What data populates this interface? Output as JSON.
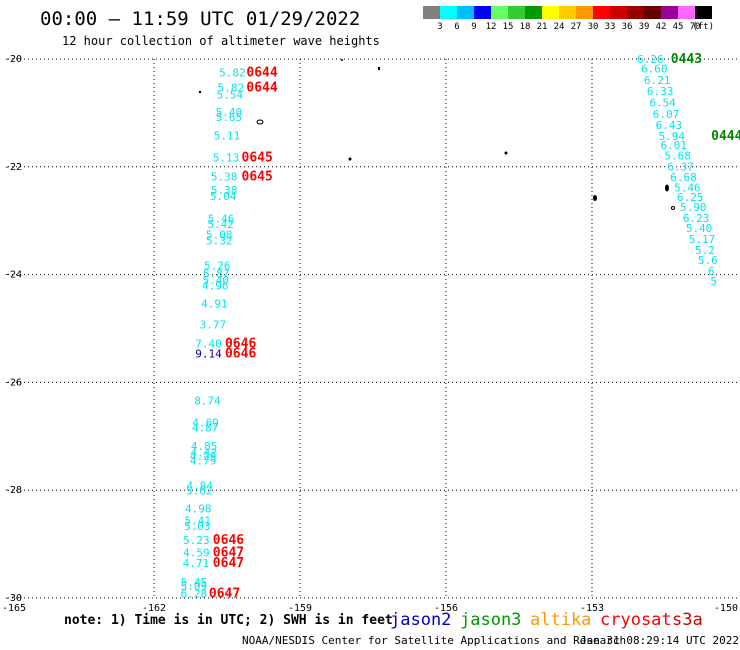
{
  "title": "00:00 – 11:59 UTC 01/29/2022",
  "subtitle": "12 hour collection of altimeter wave heights",
  "colorbar": {
    "labels": [
      "3",
      "6",
      "9",
      "12",
      "15",
      "18",
      "21",
      "24",
      "27",
      "30",
      "33",
      "36",
      "39",
      "42",
      "45",
      "70"
    ],
    "unit": "(ft)",
    "colors": [
      "#808080",
      "#00ffff",
      "#00bfff",
      "#0000ff",
      "#66ff66",
      "#33cc33",
      "#009900",
      "#ffff00",
      "#ffcc00",
      "#ff9900",
      "#ff0000",
      "#cc0000",
      "#990000",
      "#660000",
      "#990099",
      "#ff66ff",
      "#000000"
    ]
  },
  "note": "note:  1) Time is in UTC;  2) SWH is in feet",
  "satellites": [
    {
      "name": "jason2",
      "color": "#0000cc"
    },
    {
      "name": "jason3",
      "color": "#009900"
    },
    {
      "name": "altika",
      "color": "#ff9900"
    },
    {
      "name": "cryosat",
      "color": "#ff0000"
    },
    {
      "name": "s3a",
      "color": "#cc0000"
    }
  ],
  "credit": "NOAA/NESDIS Center for Satellite Applications and Research",
  "timestamp": "Jan 31 08:29:14 UTC 2022",
  "chart_data": {
    "type": "scatter",
    "xlim": [
      -165,
      -150
    ],
    "ylim": [
      -30,
      -20
    ],
    "x_ticks": [
      -165,
      -162,
      -159,
      -156,
      -153,
      -150
    ],
    "x_tick_labels": [
      "-165",
      "-162",
      "-159",
      "-156",
      "-153",
      "-150"
    ],
    "y_ticks": [
      -20,
      -22,
      -24,
      -26,
      -28,
      -30
    ],
    "y_tick_labels": [
      "-20",
      "-22",
      "-24",
      "-26",
      "-28",
      "-30"
    ],
    "grid": true,
    "series": [
      {
        "color": "#00e5ee",
        "points": [
          {
            "x": -160.39,
            "y": -20.25,
            "label": "5.82"
          },
          {
            "x": -160.42,
            "y": -20.53,
            "label": "5.82"
          },
          {
            "x": -160.44,
            "y": -20.66,
            "label": "5.54"
          },
          {
            "x": -160.46,
            "y": -20.98,
            "label": "5.40"
          },
          {
            "x": -160.46,
            "y": -21.08,
            "label": "5.65"
          },
          {
            "x": -160.5,
            "y": -21.42,
            "label": "5.11"
          },
          {
            "x": -160.52,
            "y": -21.83,
            "label": "5.13"
          },
          {
            "x": -160.56,
            "y": -22.18,
            "label": "5.38"
          },
          {
            "x": -160.56,
            "y": -22.43,
            "label": "5.38"
          },
          {
            "x": -160.58,
            "y": -22.54,
            "label": "5.04"
          },
          {
            "x": -160.62,
            "y": -22.96,
            "label": "5.46"
          },
          {
            "x": -160.63,
            "y": -23.06,
            "label": "5.42"
          },
          {
            "x": -160.66,
            "y": -23.26,
            "label": "5.08"
          },
          {
            "x": -160.66,
            "y": -23.37,
            "label": "5.32"
          },
          {
            "x": -160.7,
            "y": -23.83,
            "label": "5.26"
          },
          {
            "x": -160.72,
            "y": -23.98,
            "label": "5.87"
          },
          {
            "x": -160.73,
            "y": -24.1,
            "label": "5.40"
          },
          {
            "x": -160.74,
            "y": -24.2,
            "label": "4.96"
          },
          {
            "x": -160.76,
            "y": -24.54,
            "label": "4.91"
          },
          {
            "x": -160.79,
            "y": -24.93,
            "label": "3.77"
          },
          {
            "x": -160.88,
            "y": -25.28,
            "label": "7.40"
          },
          {
            "x": -160.9,
            "y": -26.34,
            "label": "8.74"
          },
          {
            "x": -160.94,
            "y": -26.74,
            "label": "4.69"
          },
          {
            "x": -160.95,
            "y": -26.84,
            "label": "4.87"
          },
          {
            "x": -160.97,
            "y": -27.18,
            "label": "4.85"
          },
          {
            "x": -160.98,
            "y": -27.3,
            "label": "4.42"
          },
          {
            "x": -160.99,
            "y": -27.37,
            "label": "4.29"
          },
          {
            "x": -160.99,
            "y": -27.45,
            "label": "4.79"
          },
          {
            "x": -161.06,
            "y": -27.91,
            "label": "4.84"
          },
          {
            "x": -161.07,
            "y": -28.01,
            "label": "5.62"
          },
          {
            "x": -161.09,
            "y": -28.34,
            "label": "4.98"
          },
          {
            "x": -161.1,
            "y": -28.56,
            "label": "5.41"
          },
          {
            "x": -161.11,
            "y": -28.66,
            "label": "5.03"
          },
          {
            "x": -161.13,
            "y": -28.92,
            "label": "5.23"
          },
          {
            "x": -161.13,
            "y": -29.16,
            "label": "4.59"
          },
          {
            "x": -161.14,
            "y": -29.35,
            "label": "4.71"
          },
          {
            "x": -161.18,
            "y": -29.7,
            "label": "5.45"
          },
          {
            "x": -161.18,
            "y": -29.78,
            "label": "5.09"
          },
          {
            "x": -161.18,
            "y": -29.92,
            "label": "6.28"
          }
        ]
      },
      {
        "color": "#0000aa",
        "points": [
          {
            "x": -160.88,
            "y": -25.46,
            "label": "9.14"
          }
        ]
      },
      {
        "color": "#00e5ee",
        "points": [
          {
            "x": -151.8,
            "y": -20.0,
            "label": "6.26"
          },
          {
            "x": -151.72,
            "y": -20.18,
            "label": "6.60"
          },
          {
            "x": -151.66,
            "y": -20.39,
            "label": "6.21"
          },
          {
            "x": -151.6,
            "y": -20.59,
            "label": "6.33"
          },
          {
            "x": -151.55,
            "y": -20.81,
            "label": "6.54"
          },
          {
            "x": -151.48,
            "y": -21.02,
            "label": "6.07"
          },
          {
            "x": -151.42,
            "y": -21.22,
            "label": "6.43"
          },
          {
            "x": -151.36,
            "y": -21.43,
            "label": "5.94"
          },
          {
            "x": -151.32,
            "y": -21.6,
            "label": "6.01"
          },
          {
            "x": -151.24,
            "y": -21.79,
            "label": "5.68"
          },
          {
            "x": -151.18,
            "y": -21.99,
            "label": "6.37"
          },
          {
            "x": -151.12,
            "y": -22.19,
            "label": "6.68"
          },
          {
            "x": -151.04,
            "y": -22.38,
            "label": "5.46"
          },
          {
            "x": -150.98,
            "y": -22.56,
            "label": "6.25"
          },
          {
            "x": -150.92,
            "y": -22.75,
            "label": "5.90"
          },
          {
            "x": -150.86,
            "y": -22.95,
            "label": "6.23"
          },
          {
            "x": -150.8,
            "y": -23.14,
            "label": "5.40"
          },
          {
            "x": -150.74,
            "y": -23.34,
            "label": "5.17"
          },
          {
            "x": -150.68,
            "y": -23.54,
            "label": "5.2"
          },
          {
            "x": -150.62,
            "y": -23.73,
            "label": "5.6"
          },
          {
            "x": -150.55,
            "y": -23.93,
            "label": "6"
          },
          {
            "x": -150.5,
            "y": -24.12,
            "label": "5"
          }
        ]
      }
    ],
    "pass_labels": [
      {
        "x": -159.78,
        "y": -20.25,
        "label": "0644",
        "color": "#ff0000"
      },
      {
        "x": -159.78,
        "y": -20.53,
        "label": "0644",
        "color": "#ff0000"
      },
      {
        "x": -159.88,
        "y": -21.83,
        "label": "0645",
        "color": "#ff0000"
      },
      {
        "x": -159.88,
        "y": -22.18,
        "label": "0645",
        "color": "#ff0000"
      },
      {
        "x": -160.22,
        "y": -25.28,
        "label": "0646",
        "color": "#ff0000"
      },
      {
        "x": -160.22,
        "y": -25.46,
        "label": "0646",
        "color": "#ff0000"
      },
      {
        "x": -160.47,
        "y": -28.92,
        "label": "0646",
        "color": "#ff0000"
      },
      {
        "x": -160.47,
        "y": -29.16,
        "label": "0647",
        "color": "#ff0000"
      },
      {
        "x": -160.47,
        "y": -29.35,
        "label": "0647",
        "color": "#ff0000"
      },
      {
        "x": -160.55,
        "y": -29.92,
        "label": "0647",
        "color": "#ff0000"
      },
      {
        "x": -151.06,
        "y": -20.0,
        "label": "0443",
        "color": "#008800"
      },
      {
        "x": -150.23,
        "y": -21.43,
        "label": "0444",
        "color": "#008800"
      }
    ]
  }
}
